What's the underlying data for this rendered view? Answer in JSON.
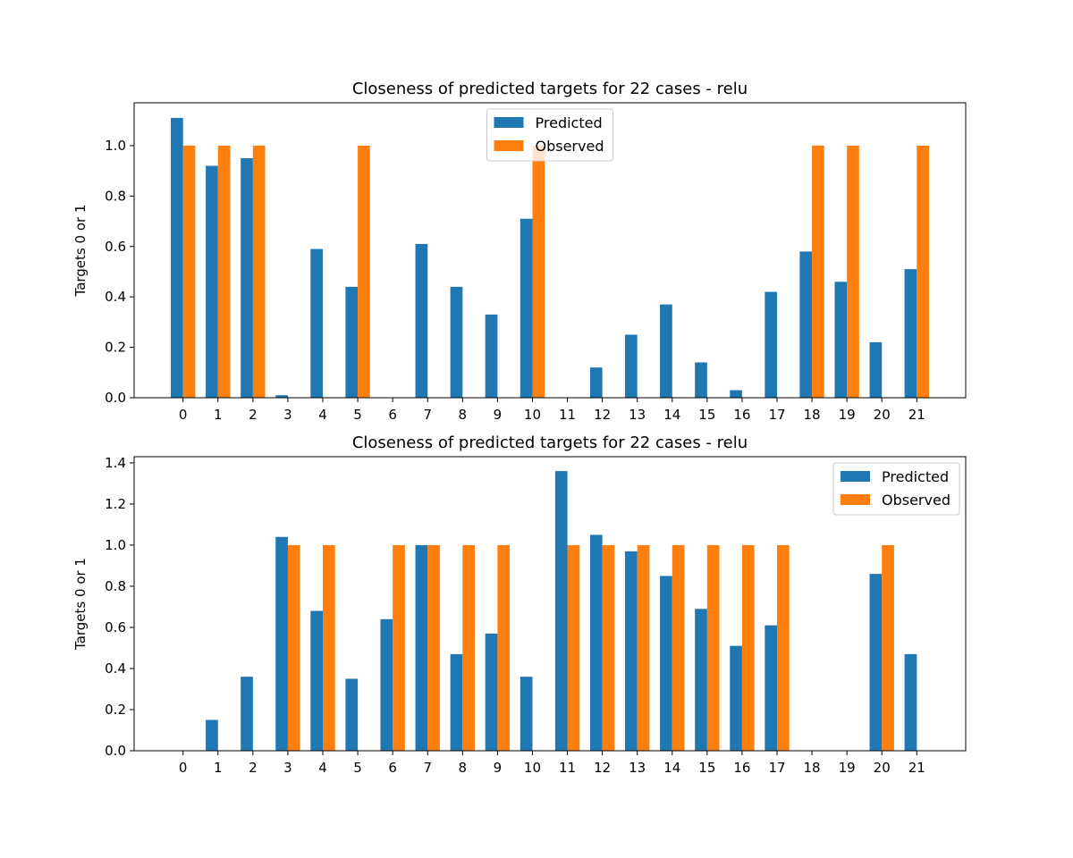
{
  "colors": {
    "predicted": "#1f77b4",
    "observed": "#ff7f0e"
  },
  "chart_data": [
    {
      "type": "bar",
      "title": "Closeness of predicted targets for 22 cases - relu",
      "xlabel": "",
      "ylabel": "Targets 0 or 1",
      "categories": [
        "0",
        "1",
        "2",
        "3",
        "4",
        "5",
        "6",
        "7",
        "8",
        "9",
        "10",
        "11",
        "12",
        "13",
        "14",
        "15",
        "16",
        "17",
        "18",
        "19",
        "20",
        "21"
      ],
      "ylim": [
        0,
        1.17
      ],
      "yticks": [
        0.0,
        0.2,
        0.4,
        0.6,
        0.8,
        1.0
      ],
      "ytick_labels": [
        "0.0",
        "0.2",
        "0.4",
        "0.6",
        "0.8",
        "1.0"
      ],
      "legend": "upper center",
      "grid": false,
      "series": [
        {
          "name": "Predicted",
          "values": [
            1.11,
            0.92,
            0.95,
            0.01,
            0.59,
            0.44,
            0.0,
            0.61,
            0.44,
            0.33,
            0.71,
            0.0,
            0.12,
            0.25,
            0.37,
            0.14,
            0.03,
            0.42,
            0.58,
            0.46,
            0.22,
            0.51
          ]
        },
        {
          "name": "Observed",
          "values": [
            1,
            1,
            1,
            0,
            0,
            1,
            0,
            0,
            0,
            0,
            1,
            0,
            0,
            0,
            0,
            0,
            0,
            0,
            1,
            1,
            0,
            1
          ]
        }
      ]
    },
    {
      "type": "bar",
      "title": "Closeness of predicted targets for 22 cases - relu",
      "xlabel": "",
      "ylabel": "Targets 0 or 1",
      "categories": [
        "0",
        "1",
        "2",
        "3",
        "4",
        "5",
        "6",
        "7",
        "8",
        "9",
        "10",
        "11",
        "12",
        "13",
        "14",
        "15",
        "16",
        "17",
        "18",
        "19",
        "20",
        "21"
      ],
      "ylim": [
        0,
        1.43
      ],
      "yticks": [
        0.0,
        0.2,
        0.4,
        0.6,
        0.8,
        1.0,
        1.2,
        1.4
      ],
      "ytick_labels": [
        "0.0",
        "0.2",
        "0.4",
        "0.6",
        "0.8",
        "1.0",
        "1.2",
        "1.4"
      ],
      "legend": "upper right",
      "grid": false,
      "series": [
        {
          "name": "Predicted",
          "values": [
            0.0,
            0.15,
            0.36,
            1.04,
            0.68,
            0.35,
            0.64,
            1.0,
            0.47,
            0.57,
            0.36,
            1.36,
            1.05,
            0.97,
            0.85,
            0.69,
            0.51,
            0.61,
            0.0,
            0.0,
            0.86,
            0.47
          ]
        },
        {
          "name": "Observed",
          "values": [
            0,
            0,
            0,
            1,
            1,
            0,
            1,
            1,
            1,
            1,
            0,
            1,
            1,
            1,
            1,
            1,
            1,
            1,
            0,
            0,
            1,
            0
          ]
        }
      ]
    }
  ]
}
